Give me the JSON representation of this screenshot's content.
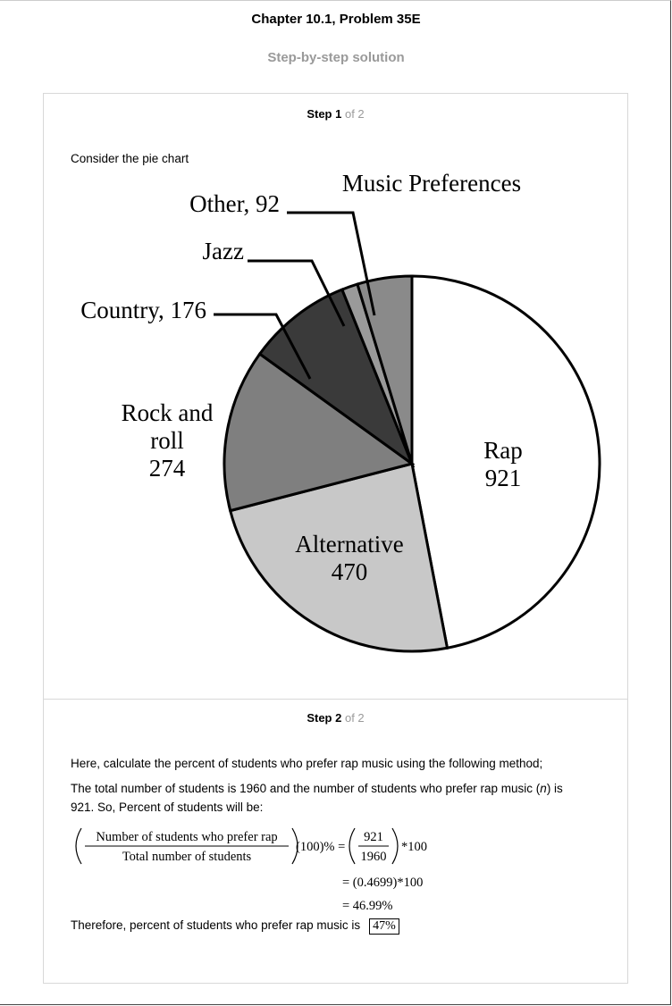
{
  "header": {
    "title": "Chapter 10.1, Problem 35E",
    "subtitle": "Step-by-step solution"
  },
  "step1": {
    "label": "Step 1",
    "of": "of 2",
    "intro": "Consider the pie chart"
  },
  "chart_data": {
    "type": "pie",
    "title": "Music Preferences",
    "slices": [
      {
        "name": "Rap",
        "value": 921,
        "color": "#ffffff",
        "label_lines": [
          "Rap",
          "921"
        ]
      },
      {
        "name": "Alternative",
        "value": 470,
        "color": "#c8c8c8",
        "label_lines": [
          "Alternative",
          "470"
        ]
      },
      {
        "name": "Rock and roll",
        "value": 274,
        "color": "#7f7f7f",
        "label_lines": [
          "Rock and",
          "roll",
          "274"
        ]
      },
      {
        "name": "Country",
        "value": 176,
        "color": "#3a3a3a",
        "label_lines": [
          "Country, 176"
        ]
      },
      {
        "name": "Jazz",
        "value": 27,
        "color": "#9a9a9a",
        "label_lines": [
          "Jazz"
        ]
      },
      {
        "name": "Other",
        "value": 92,
        "color": "#8a8a8a",
        "label_lines": [
          "Other, 92"
        ]
      }
    ]
  },
  "step2": {
    "label": "Step 2",
    "of": "of 2",
    "line1": "Here, calculate the percent of students who prefer rap music using the following method;",
    "line2a": "The total number of students is 1960 and the number of students who prefer rap music (",
    "line2n": "n",
    "line2b": ") is",
    "line3": "921. So, Percent of students will be:",
    "math": {
      "num": "Number of students who prefer rap",
      "den": "Total number of students",
      "mult": "(100)% =",
      "frac_num": "921",
      "frac_den": "1960",
      "times": "*100",
      "row2": "= (0.4699)*100",
      "row3": "= 46.99%"
    },
    "conclusion": "Therefore, percent of students who prefer rap music is",
    "answer": "47%"
  }
}
